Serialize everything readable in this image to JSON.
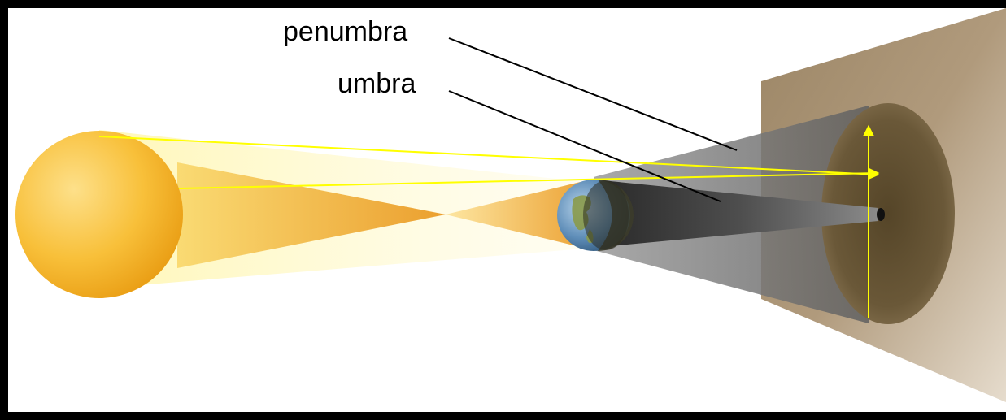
{
  "labels": {
    "penumbra": "penumbra",
    "umbra": "umbra"
  },
  "colors": {
    "frame": "#000000",
    "background": "#ffffff",
    "sun": "#f6b21c",
    "light_rays": "#ffff00",
    "screen": "#8a7352",
    "shadow_cone": "#6c6c6c"
  },
  "icons": {
    "sun": "sun-sphere",
    "earth": "earth-globe",
    "screen": "projection-screen"
  }
}
